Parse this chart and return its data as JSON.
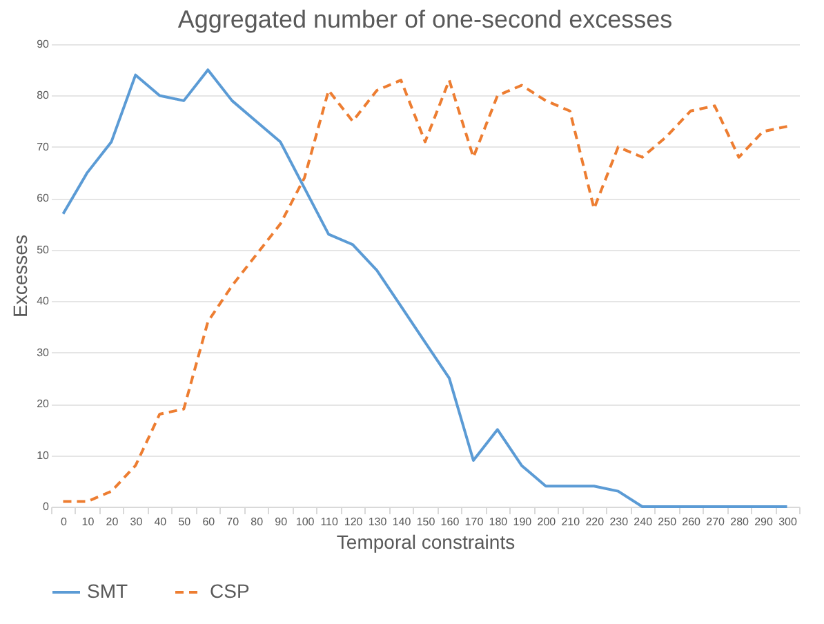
{
  "chart_data": {
    "type": "line",
    "title": "Aggregated number of one-second excesses",
    "xlabel": "Temporal constraints",
    "ylabel": "Excesses",
    "categories": [
      "0",
      "10",
      "20",
      "30",
      "40",
      "50",
      "60",
      "70",
      "80",
      "90",
      "100",
      "110",
      "120",
      "130",
      "140",
      "150",
      "160",
      "170",
      "180",
      "190",
      "200",
      "210",
      "220",
      "230",
      "240",
      "250",
      "260",
      "270",
      "280",
      "290",
      "300"
    ],
    "series": [
      {
        "name": "SMT",
        "color": "#5b9bd5",
        "line_style": "solid",
        "values": [
          57,
          65,
          71,
          84,
          80,
          79,
          85,
          79,
          75,
          71,
          62,
          53,
          51,
          46,
          39,
          32,
          25,
          9,
          15,
          8,
          4,
          4,
          4,
          3,
          0,
          0,
          0,
          0,
          0,
          0,
          0
        ]
      },
      {
        "name": "CSP",
        "color": "#ed7d31",
        "line_style": "dashed",
        "values": [
          1,
          1,
          3,
          8,
          18,
          19,
          36,
          43,
          49,
          55,
          64,
          81,
          75,
          81,
          83,
          71,
          83,
          68,
          80,
          82,
          79,
          77,
          58,
          70,
          68,
          72,
          77,
          78,
          68,
          73,
          74
        ]
      }
    ],
    "ylim": [
      0,
      90
    ],
    "yticks": [
      0,
      10,
      20,
      30,
      40,
      50,
      60,
      70,
      80,
      90
    ],
    "grid": "y",
    "legend": "bottom",
    "marker": "none"
  }
}
